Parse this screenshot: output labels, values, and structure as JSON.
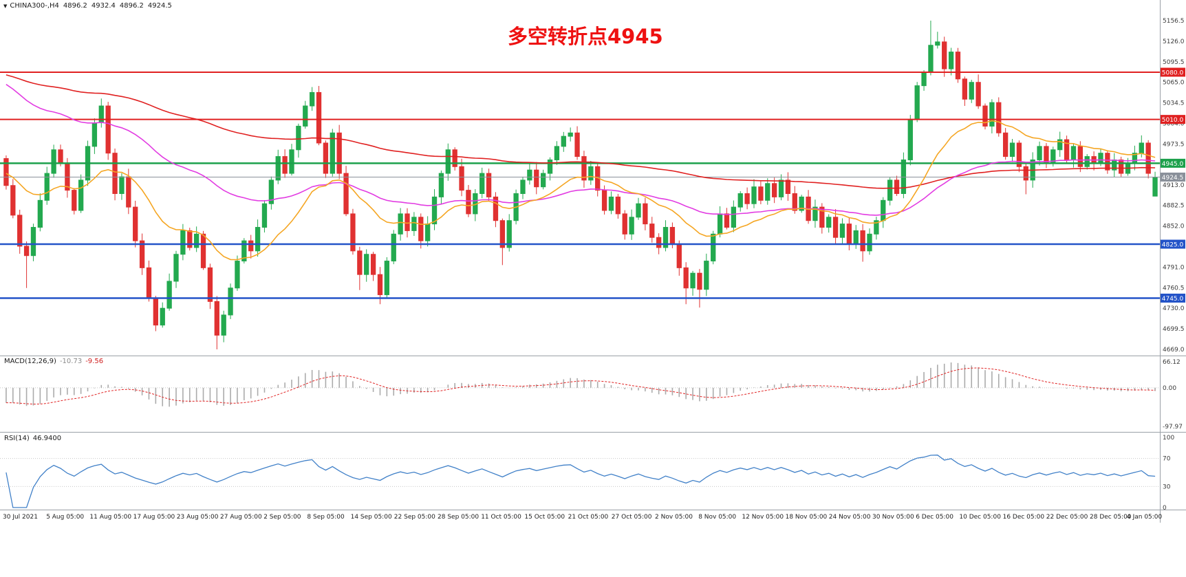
{
  "header": {
    "dropdown_icon": "▼",
    "symbol": "CHINA300-,H4",
    "open": "4896.2",
    "high": "4932.4",
    "low": "4896.2",
    "close": "4924.5"
  },
  "annotation": {
    "text": "多空转折点4945",
    "color": "#EE1111"
  },
  "colors": {
    "background": "#FFFFFF",
    "bull": "#23A94F",
    "bear": "#E03131",
    "axis_text": "#3A3A3A",
    "time_text": "#202020",
    "separator": "#9AA0A6",
    "grid_dotted": "#C8C8C8"
  },
  "chart_data": {
    "type": "candlestick",
    "symbol": "CHINA300-",
    "timeframe": "H4",
    "x_labels": [
      "30 Jul 2021",
      "5 Aug 05:00",
      "11 Aug 05:00",
      "17 Aug 05:00",
      "23 Aug 05:00",
      "27 Aug 05:00",
      "2 Sep 05:00",
      "8 Sep 05:00",
      "14 Sep 05:00",
      "22 Sep 05:00",
      "28 Sep 05:00",
      "11 Oct 05:00",
      "15 Oct 05:00",
      "21 Oct 05:00",
      "27 Oct 05:00",
      "2 Nov 05:00",
      "8 Nov 05:00",
      "12 Nov 05:00",
      "18 Nov 05:00",
      "24 Nov 05:00",
      "30 Nov 05:00",
      "6 Dec 05:00",
      "10 Dec 05:00",
      "16 Dec 05:00",
      "22 Dec 05:00",
      "28 Dec 05:00",
      "4 Jan 05:00"
    ],
    "y_axis_ticks": [
      "5156.5",
      "5126.0",
      "5095.5",
      "5065.0",
      "5034.5",
      "5004.0",
      "4973.5",
      "4943.0",
      "4913.0",
      "4882.5",
      "4852.0",
      "4821.5",
      "4791.0",
      "4760.5",
      "4730.0",
      "4699.5",
      "4669.0"
    ],
    "price_range": {
      "min": 4669.0,
      "max": 5156.5
    },
    "first_open": 4952,
    "closes": [
      4912,
      4868,
      4822,
      4808,
      4850,
      4890,
      4930,
      4965,
      4945,
      4905,
      4875,
      4920,
      4970,
      5005,
      5030,
      4960,
      4900,
      4925,
      4880,
      4830,
      4790,
      4745,
      4705,
      4730,
      4770,
      4810,
      4845,
      4820,
      4840,
      4790,
      4740,
      4690,
      4720,
      4760,
      4800,
      4830,
      4815,
      4850,
      4885,
      4920,
      4955,
      4930,
      4965,
      5000,
      5030,
      5050,
      4975,
      4930,
      4990,
      4930,
      4870,
      4815,
      4780,
      4810,
      4780,
      4750,
      4800,
      4840,
      4870,
      4845,
      4865,
      4830,
      4855,
      4895,
      4930,
      4965,
      4940,
      4905,
      4870,
      4900,
      4930,
      4895,
      4860,
      4820,
      4860,
      4900,
      4920,
      4935,
      4910,
      4930,
      4950,
      4970,
      4985,
      4990,
      4955,
      4920,
      4940,
      4905,
      4875,
      4895,
      4870,
      4840,
      4865,
      4885,
      4855,
      4835,
      4820,
      4850,
      4825,
      4790,
      4760,
      4782,
      4758,
      4800,
      4840,
      4870,
      4850,
      4880,
      4900,
      4885,
      4910,
      4890,
      4915,
      4895,
      4920,
      4900,
      4875,
      4895,
      4860,
      4880,
      4850,
      4865,
      4835,
      4855,
      4825,
      4845,
      4815,
      4840,
      4860,
      4890,
      4920,
      4900,
      4950,
      5010,
      5060,
      5080,
      5120,
      5125,
      5085,
      5110,
      5070,
      5040,
      5065,
      5030,
      5000,
      5035,
      4990,
      4955,
      4975,
      4940,
      4920,
      4950,
      4970,
      4945,
      4965,
      4980,
      4950,
      4970,
      4940,
      4955,
      4945,
      4960,
      4935,
      4950,
      4930,
      4945,
      4960,
      4975,
      4930,
      4924.5
    ],
    "last_bar": {
      "open": 4896.2,
      "high": 4932.4,
      "low": 4896.2,
      "close": 4924.5
    },
    "wick_overrides": [
      {
        "index": 3,
        "low": 4760
      },
      {
        "index": 14,
        "high": 5041
      },
      {
        "index": 22,
        "low": 4696
      },
      {
        "index": 31,
        "low": 4669.0
      },
      {
        "index": 45,
        "high": 5058
      },
      {
        "index": 48,
        "high": 4996
      },
      {
        "index": 52,
        "low": 4757
      },
      {
        "index": 55,
        "low": 4736
      },
      {
        "index": 73,
        "low": 4794
      },
      {
        "index": 83,
        "high": 4998
      },
      {
        "index": 100,
        "low": 4736
      },
      {
        "index": 102,
        "low": 4731
      },
      {
        "index": 126,
        "low": 4799
      },
      {
        "index": 136,
        "high": 5156.5
      },
      {
        "index": 137,
        "high": 5140
      },
      {
        "index": 150,
        "low": 4899
      }
    ],
    "moving_averages": [
      {
        "name": "slow",
        "period": 150,
        "seed": 5076,
        "color": "#E02020"
      },
      {
        "name": "medium",
        "period": 55,
        "seed": 5062,
        "color": "#E23CE2"
      },
      {
        "name": "fast",
        "period": 20,
        "seed": 4930,
        "color": "#F5A623"
      }
    ],
    "price_levels": [
      {
        "label": "5080.0",
        "value": 5080.0,
        "color": "#E02020",
        "width": 2,
        "kind": "resistance"
      },
      {
        "label": "5010.0",
        "value": 5010.0,
        "color": "#E02020",
        "width": 2,
        "kind": "resistance"
      },
      {
        "label": "4945.0",
        "value": 4945.0,
        "color": "#1CA04B",
        "width": 2.5,
        "kind": "pivot"
      },
      {
        "label": "4924.5",
        "value": 4924.5,
        "color": "#8A909A",
        "width": 1,
        "kind": "current-price"
      },
      {
        "label": "4825.0",
        "value": 4825.0,
        "color": "#2353C8",
        "width": 2.5,
        "kind": "support"
      },
      {
        "label": "4745.0",
        "value": 4745.0,
        "color": "#2353C8",
        "width": 2.5,
        "kind": "support"
      }
    ],
    "indicators": {
      "macd": {
        "label": "MACD(12,26,9)",
        "main_value": "-10.73",
        "signal_value": "-9.56",
        "fast": 12,
        "slow": 26,
        "signal": 9,
        "slow_seed": 4950,
        "axis": [
          "66.12",
          "0.00",
          "-97.97"
        ],
        "range": {
          "min": -97.97,
          "max": 66.12
        },
        "histogram_color": "#ABABAB",
        "signal_color": "#E02020"
      },
      "rsi": {
        "label": "RSI(14)",
        "value": "46.9400",
        "period": 14,
        "axis": [
          "100",
          "70",
          "30",
          "0"
        ],
        "levels": [
          70,
          30
        ],
        "range": {
          "min": 0,
          "max": 100
        },
        "line_color": "#4080C8"
      }
    }
  }
}
